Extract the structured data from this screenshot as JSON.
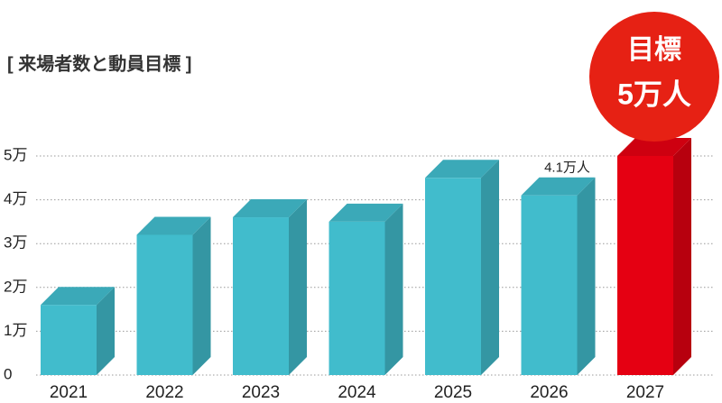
{
  "chart_data": {
    "type": "bar3d",
    "title": "[ 来場者数と動員目標 ]",
    "annotation": "目標",
    "categories": [
      "2021",
      "2022",
      "2023",
      "2024",
      "2025",
      "2026",
      "2027"
    ],
    "values": [
      1.6,
      3.2,
      3.6,
      3.5,
      4.5,
      4.1,
      5
    ],
    "value_labels": [
      null,
      null,
      null,
      null,
      null,
      "4.1万人",
      "5万人"
    ],
    "colors": [
      "#41bccc",
      "#41bccc",
      "#41bccc",
      "#41bccc",
      "#41bccc",
      "#41bccc",
      "#e50012"
    ],
    "ylim": [
      0,
      5
    ],
    "yticks": [
      0,
      {
        "value": 1,
        "label": "1万"
      },
      {
        "value": 2,
        "label": "2万"
      },
      {
        "value": 3,
        "label": "3万"
      },
      {
        "value": 4,
        "label": "4万"
      },
      {
        "value": 5,
        "label": "5万"
      }
    ],
    "grid": true
  }
}
